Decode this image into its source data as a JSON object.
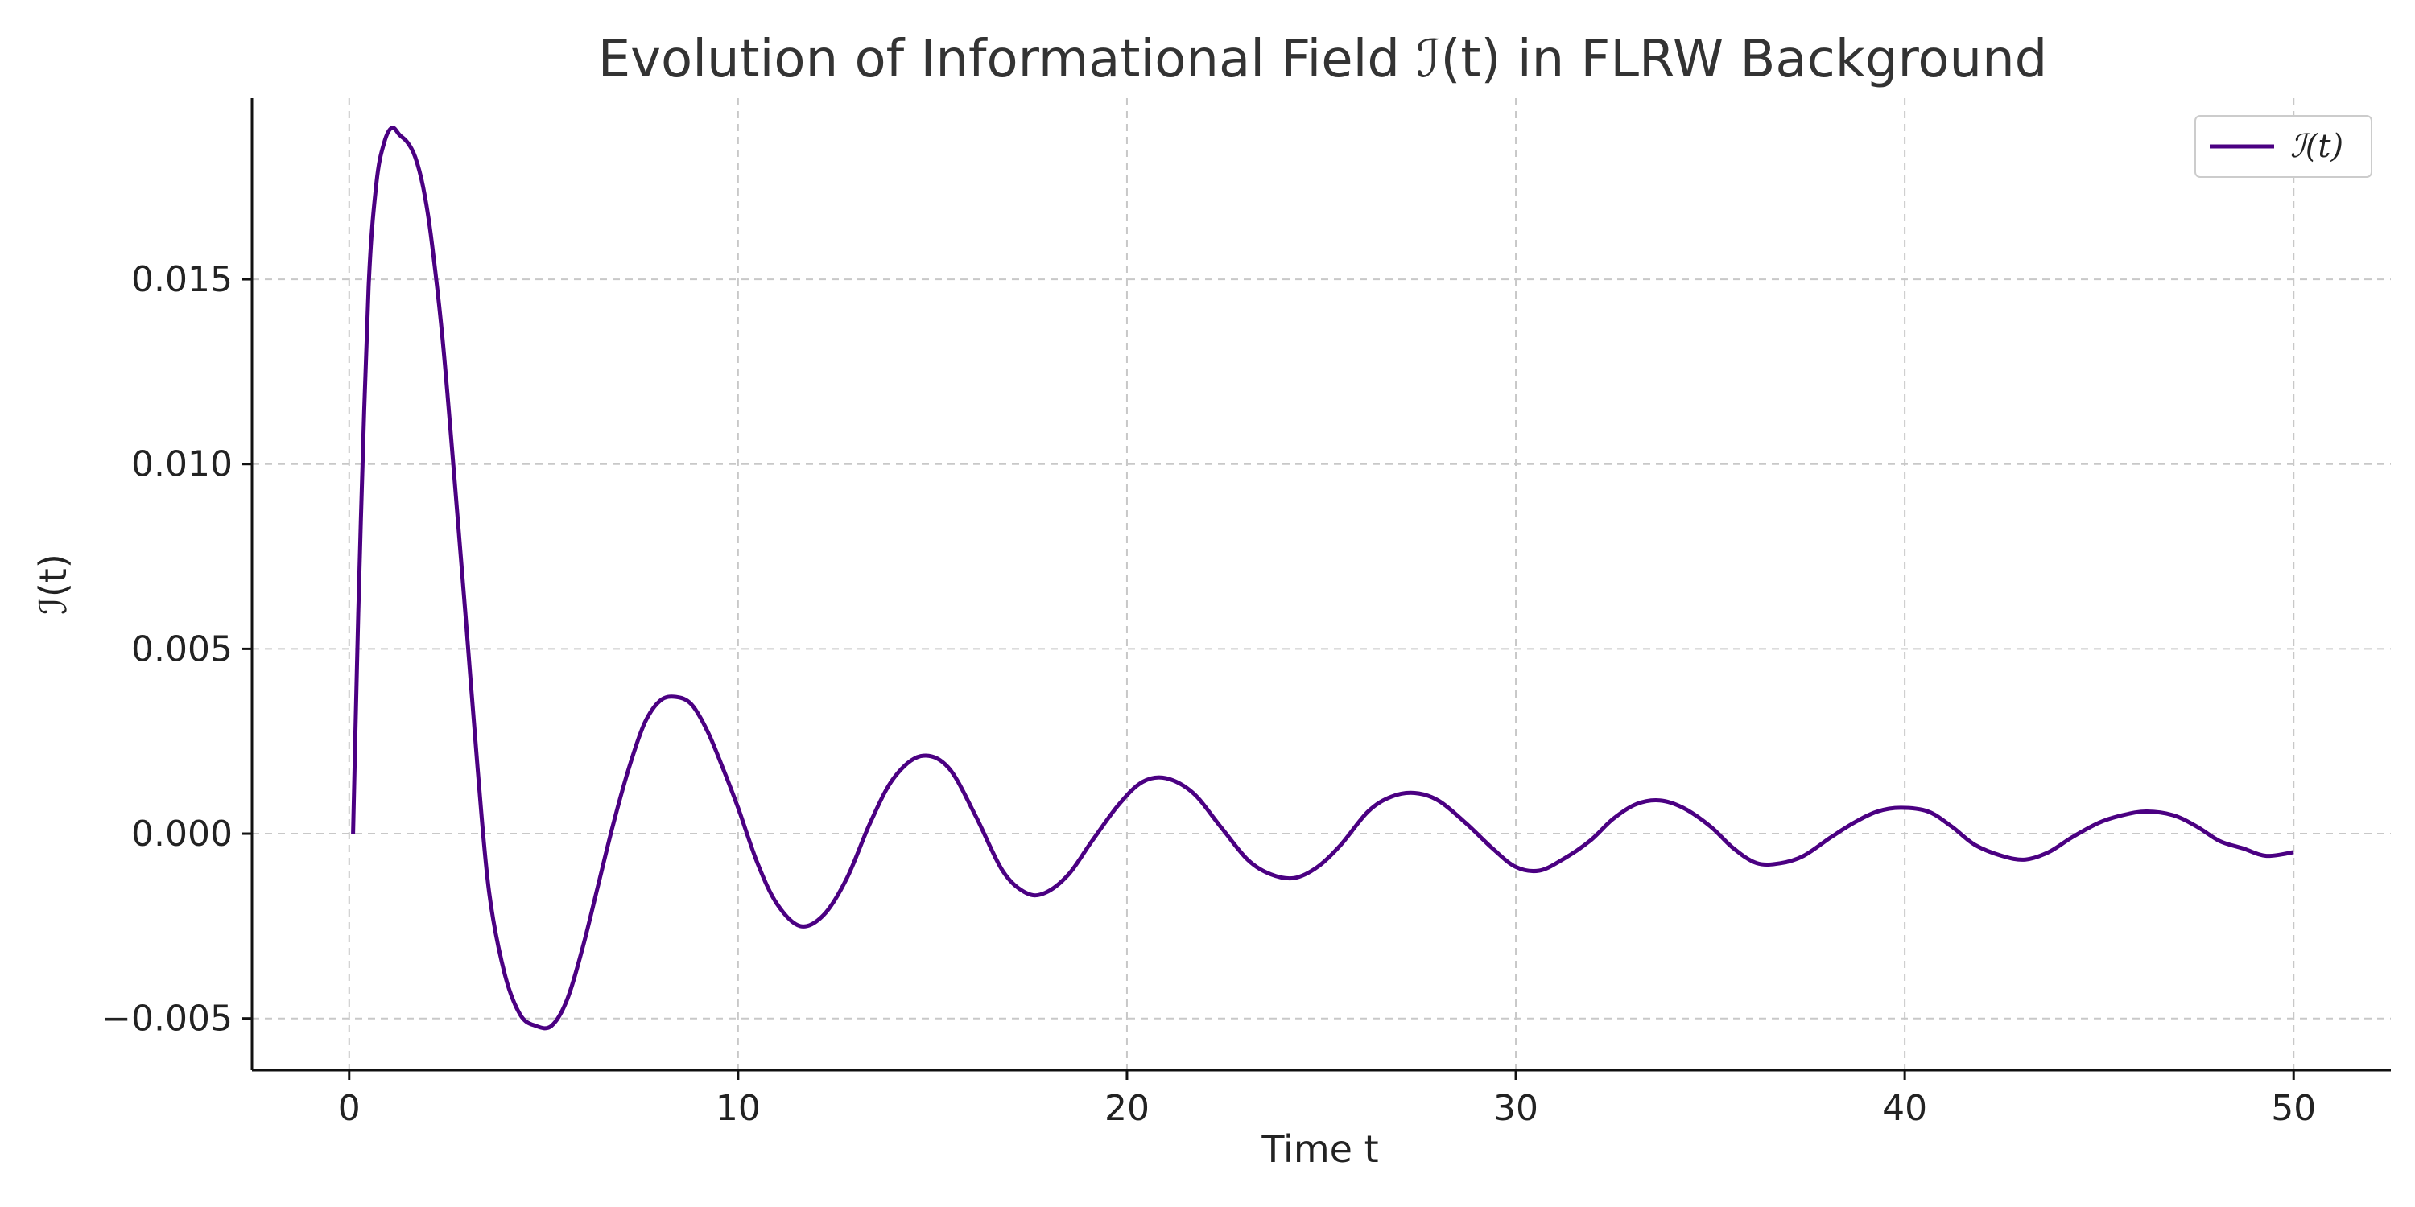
{
  "chart_data": {
    "type": "line",
    "title": "Evolution of Informational Field ℐ(t) in FLRW Background",
    "xlabel": "Time t",
    "ylabel": "ℐ(t)",
    "xlim": [
      -2.5,
      52.5
    ],
    "ylim": [
      -0.0064,
      0.0199
    ],
    "grid": true,
    "legend_position": "top-right",
    "x_ticks": [
      0,
      10,
      20,
      30,
      40,
      50
    ],
    "x_tick_labels": [
      "0",
      "10",
      "20",
      "30",
      "40",
      "50"
    ],
    "y_ticks": [
      -0.005,
      0.0,
      0.005,
      0.01,
      0.015
    ],
    "y_tick_labels": [
      "−0.005",
      "0.000",
      "0.005",
      "0.010",
      "0.015"
    ],
    "series": [
      {
        "name": "ℐ(t)",
        "color": "#4b0082",
        "x": [
          0.1,
          0.2,
          0.3,
          0.5,
          0.7,
          0.9,
          1.1,
          1.3,
          1.5,
          1.7,
          1.9,
          2.1,
          2.4,
          2.7,
          3.0,
          3.3,
          3.6,
          4.0,
          4.4,
          4.8,
          5.2,
          5.6,
          6.0,
          6.4,
          6.8,
          7.2,
          7.6,
          8.0,
          8.4,
          8.8,
          9.2,
          9.6,
          10.0,
          10.5,
          11.0,
          11.6,
          12.2,
          12.8,
          13.4,
          14.0,
          14.7,
          15.4,
          16.1,
          16.8,
          17.4,
          17.9,
          18.5,
          19.1,
          19.8,
          20.4,
          21.0,
          21.7,
          22.4,
          23.1,
          23.7,
          24.3,
          24.9,
          25.5,
          26.2,
          26.8,
          27.4,
          28.0,
          28.7,
          29.4,
          30.0,
          30.6,
          31.2,
          31.9,
          32.5,
          33.1,
          33.7,
          34.3,
          35.0,
          35.6,
          36.2,
          36.8,
          37.4,
          38.1,
          38.7,
          39.3,
          39.9,
          40.6,
          41.2,
          41.8,
          42.5,
          43.1,
          43.7,
          44.3,
          45.0,
          45.6,
          46.2,
          46.9,
          47.5,
          48.1,
          48.7,
          49.3,
          50.0
        ],
        "y": [
          0.0,
          0.0045,
          0.0085,
          0.0148,
          0.0176,
          0.0187,
          0.0191,
          0.0189,
          0.0187,
          0.0183,
          0.0175,
          0.0162,
          0.0134,
          0.0097,
          0.0058,
          0.0018,
          -0.0016,
          -0.0038,
          -0.0049,
          -0.0052,
          -0.0052,
          -0.0045,
          -0.0031,
          -0.0014,
          0.0003,
          0.0018,
          0.003,
          0.0036,
          0.0037,
          0.0035,
          0.0028,
          0.0018,
          0.0007,
          -0.0008,
          -0.0019,
          -0.0025,
          -0.0022,
          -0.0012,
          0.0003,
          0.0015,
          0.0021,
          0.0018,
          0.0005,
          -0.001,
          -0.0016,
          -0.0016,
          -0.0011,
          -0.0002,
          0.0008,
          0.0014,
          0.0015,
          0.0011,
          0.0002,
          -0.0007,
          -0.0011,
          -0.0012,
          -0.0009,
          -0.0003,
          0.0006,
          0.001,
          0.0011,
          0.0009,
          0.0003,
          -0.0004,
          -0.0009,
          -0.001,
          -0.0007,
          -0.0002,
          0.0004,
          0.0008,
          0.0009,
          0.0007,
          0.0002,
          -0.0004,
          -0.0008,
          -0.0008,
          -0.0006,
          -0.0001,
          0.0003,
          0.0006,
          0.0007,
          0.0006,
          0.0002,
          -0.0003,
          -0.0006,
          -0.0007,
          -0.0005,
          -0.0001,
          0.0003,
          0.0005,
          0.0006,
          0.0005,
          0.0002,
          -0.0002,
          -0.0004,
          -0.0006,
          -0.0005
        ]
      }
    ]
  }
}
